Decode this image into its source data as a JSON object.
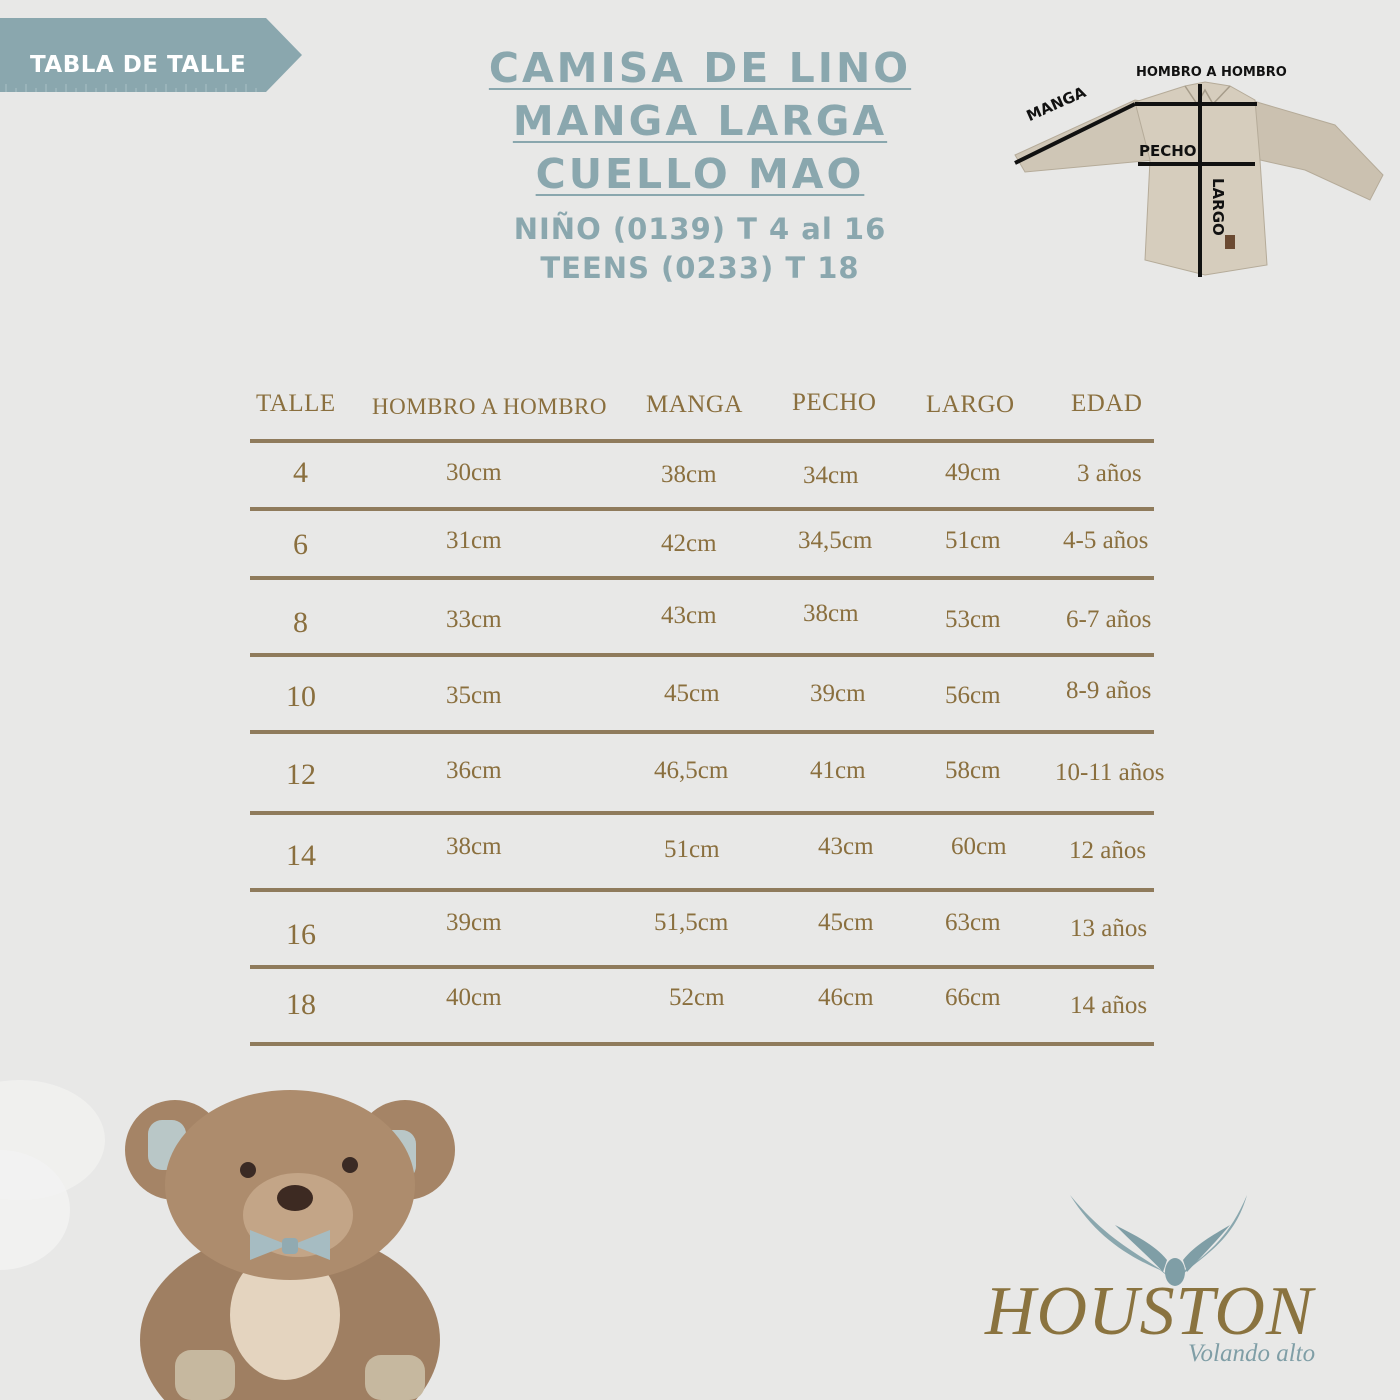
{
  "tag": {
    "label": "TABLA DE TALLE",
    "color": "#8aa7ae"
  },
  "title": {
    "lines": [
      "CAMISA DE LINO",
      "MANGA LARGA",
      "CUELLO MAO"
    ],
    "subtitles": [
      "NIÑO (0139) T 4 al 16",
      "TEENS (0233) T 18"
    ]
  },
  "diagram": {
    "hombro": "HOMBRO A HOMBRO",
    "manga": "MANGA",
    "pecho": "PECHO",
    "largo": "LARGO"
  },
  "table": {
    "headers": [
      "TALLE",
      "HOMBRO A HOMBRO",
      "MANGA",
      "PECHO",
      "LARGO",
      "EDAD"
    ],
    "rows": [
      [
        "4",
        "30cm",
        "38cm",
        "34cm",
        "49cm",
        "3 años"
      ],
      [
        "6",
        "31cm",
        "42cm",
        "34,5cm",
        "51cm",
        "4-5 años"
      ],
      [
        "8",
        "33cm",
        "43cm",
        "38cm",
        "53cm",
        "6-7 años"
      ],
      [
        "10",
        "35cm",
        "45cm",
        "39cm",
        "56cm",
        "8-9 años"
      ],
      [
        "12",
        "36cm",
        "46,5cm",
        "41cm",
        "58cm",
        "10-11 años"
      ],
      [
        "14",
        "38cm",
        "51cm",
        "43cm",
        "60cm",
        "12 años"
      ],
      [
        "16",
        "39cm",
        "51,5cm",
        "45cm",
        "63cm",
        "13 años"
      ],
      [
        "18",
        "40cm",
        "52cm",
        "46cm",
        "66cm",
        "14 años"
      ]
    ]
  },
  "logo": {
    "name": "HOUSTON",
    "tagline": "Volando alto"
  },
  "colors": {
    "text": "#8a6f3e",
    "accent": "#8aa7ae",
    "background": "#e8e8e7"
  }
}
